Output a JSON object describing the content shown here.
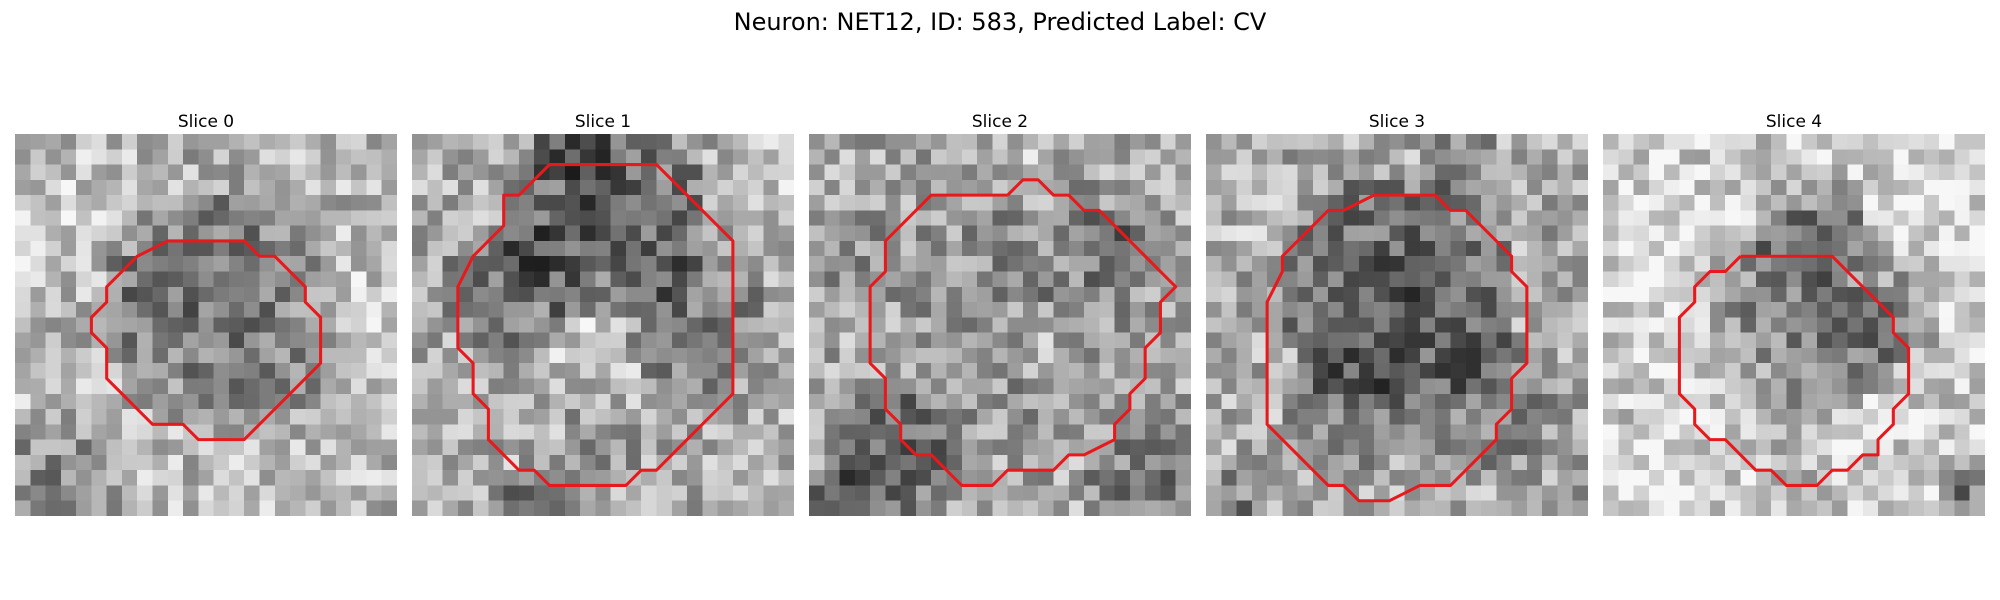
{
  "figure": {
    "title": "Neuron: NET12, ID: 583, Predicted Label: CV"
  },
  "colors": {
    "contour": "#e8191c",
    "background": "#ffffff"
  },
  "panels": [
    {
      "title": "Slice 0",
      "contour": [
        [
          12,
          7
        ],
        [
          15,
          7
        ],
        [
          16,
          8
        ],
        [
          17,
          8
        ],
        [
          18,
          9
        ],
        [
          19,
          10
        ],
        [
          19,
          11
        ],
        [
          20,
          12
        ],
        [
          20,
          13
        ],
        [
          20,
          14
        ],
        [
          20,
          15
        ],
        [
          19,
          16
        ],
        [
          18,
          17
        ],
        [
          17,
          18
        ],
        [
          16,
          19
        ],
        [
          15,
          20
        ],
        [
          12,
          20
        ],
        [
          11,
          19
        ],
        [
          9,
          19
        ],
        [
          8,
          18
        ],
        [
          7,
          17
        ],
        [
          6,
          16
        ],
        [
          6,
          15
        ],
        [
          6,
          14
        ],
        [
          5,
          13
        ],
        [
          5,
          12
        ],
        [
          6,
          11
        ],
        [
          6,
          10
        ],
        [
          7,
          9
        ],
        [
          8,
          8
        ],
        [
          10,
          7
        ],
        [
          12,
          7
        ]
      ],
      "patches": [
        {
          "cx": 13,
          "cy": 11,
          "r": 8,
          "s": -0.28
        },
        {
          "cx": 8,
          "cy": 10,
          "r": 4,
          "s": -0.12
        },
        {
          "cx": 14,
          "cy": 6,
          "r": 3,
          "s": -0.08
        },
        {
          "cx": 2,
          "cy": 23,
          "r": 6,
          "s": -0.22
        },
        {
          "cx": 8,
          "cy": 29,
          "r": 5,
          "s": -0.25
        },
        {
          "cx": 22,
          "cy": 29,
          "r": 5,
          "s": -0.18
        },
        {
          "cx": 12,
          "cy": 2,
          "r": 4,
          "s": -0.05
        },
        {
          "cx": 26,
          "cy": 10,
          "r": 5,
          "s": 0.08
        },
        {
          "cx": 3,
          "cy": 5,
          "r": 5,
          "s": 0.08
        }
      ],
      "base": 0.72,
      "seed": 11
    },
    {
      "title": "Slice 1",
      "contour": [
        [
          9,
          2
        ],
        [
          16,
          2
        ],
        [
          18,
          4
        ],
        [
          20,
          6
        ],
        [
          21,
          7
        ],
        [
          21,
          9
        ],
        [
          21,
          14
        ],
        [
          21,
          17
        ],
        [
          19,
          19
        ],
        [
          17,
          21
        ],
        [
          16,
          22
        ],
        [
          15,
          22
        ],
        [
          14,
          23
        ],
        [
          9,
          23
        ],
        [
          8,
          22
        ],
        [
          7,
          22
        ],
        [
          6,
          21
        ],
        [
          5,
          20
        ],
        [
          5,
          18
        ],
        [
          4,
          17
        ],
        [
          4,
          16
        ],
        [
          4,
          15
        ],
        [
          3,
          14
        ],
        [
          3,
          12
        ],
        [
          3,
          10
        ],
        [
          4,
          8
        ],
        [
          5,
          7
        ],
        [
          6,
          6
        ],
        [
          6,
          4
        ],
        [
          7,
          4
        ],
        [
          8,
          3
        ],
        [
          9,
          2
        ]
      ],
      "patches": [
        {
          "cx": 12,
          "cy": 5,
          "r": 7,
          "s": -0.38
        },
        {
          "cx": 6,
          "cy": 10,
          "r": 5,
          "s": -0.25
        },
        {
          "cx": 18,
          "cy": 12,
          "r": 5,
          "s": -0.25
        },
        {
          "cx": 11,
          "cy": 12,
          "r": 5,
          "s": 0.12
        },
        {
          "cx": 12,
          "cy": 20,
          "r": 3,
          "s": -0.12
        },
        {
          "cx": 7,
          "cy": 24,
          "r": 3,
          "s": -0.4
        },
        {
          "cx": 10,
          "cy": 0,
          "r": 3,
          "s": -0.2
        },
        {
          "cx": 22,
          "cy": 24,
          "r": 4,
          "s": 0.06
        },
        {
          "cx": 24,
          "cy": 2,
          "r": 4,
          "s": 0.12
        }
      ],
      "base": 0.68,
      "seed": 23
    },
    {
      "title": "Slice 2",
      "contour": [
        [
          13,
          4
        ],
        [
          14,
          3
        ],
        [
          15,
          3
        ],
        [
          16,
          4
        ],
        [
          17,
          4
        ],
        [
          18,
          5
        ],
        [
          19,
          5
        ],
        [
          20,
          6
        ],
        [
          21,
          7
        ],
        [
          22,
          8
        ],
        [
          23,
          9
        ],
        [
          24,
          10
        ],
        [
          23,
          11
        ],
        [
          23,
          13
        ],
        [
          22,
          14
        ],
        [
          22,
          16
        ],
        [
          21,
          17
        ],
        [
          21,
          18
        ],
        [
          20,
          19
        ],
        [
          20,
          20
        ],
        [
          18,
          21
        ],
        [
          17,
          21
        ],
        [
          16,
          22
        ],
        [
          15,
          22
        ],
        [
          13,
          22
        ],
        [
          12,
          23
        ],
        [
          10,
          23
        ],
        [
          9,
          22
        ],
        [
          8,
          21
        ],
        [
          7,
          21
        ],
        [
          6,
          20
        ],
        [
          6,
          19
        ],
        [
          5,
          18
        ],
        [
          5,
          16
        ],
        [
          4,
          15
        ],
        [
          4,
          14
        ],
        [
          4,
          12
        ],
        [
          4,
          11
        ],
        [
          4,
          10
        ],
        [
          5,
          9
        ],
        [
          5,
          7
        ],
        [
          6,
          6
        ],
        [
          7,
          5
        ],
        [
          8,
          4
        ],
        [
          9,
          4
        ],
        [
          13,
          4
        ]
      ],
      "patches": [
        {
          "cx": 14,
          "cy": 10,
          "r": 9,
          "s": -0.12
        },
        {
          "cx": 20,
          "cy": 7,
          "r": 3,
          "s": -0.2
        },
        {
          "cx": 5,
          "cy": 20,
          "r": 5,
          "s": -0.3
        },
        {
          "cx": 1,
          "cy": 24,
          "r": 3,
          "s": -0.4
        },
        {
          "cx": 22,
          "cy": 23,
          "r": 5,
          "s": -0.22
        },
        {
          "cx": 15,
          "cy": 13,
          "r": 3,
          "s": 0.12
        },
        {
          "cx": 2,
          "cy": 8,
          "r": 4,
          "s": -0.1
        },
        {
          "cx": 13,
          "cy": 1,
          "r": 4,
          "s": 0.08
        }
      ],
      "base": 0.66,
      "seed": 37
    },
    {
      "title": "Slice 3",
      "contour": [
        [
          11,
          4
        ],
        [
          15,
          4
        ],
        [
          16,
          5
        ],
        [
          17,
          5
        ],
        [
          18,
          6
        ],
        [
          19,
          7
        ],
        [
          20,
          8
        ],
        [
          20,
          9
        ],
        [
          21,
          10
        ],
        [
          21,
          13
        ],
        [
          21,
          15
        ],
        [
          20,
          16
        ],
        [
          20,
          18
        ],
        [
          19,
          19
        ],
        [
          19,
          20
        ],
        [
          18,
          21
        ],
        [
          17,
          22
        ],
        [
          16,
          23
        ],
        [
          14,
          23
        ],
        [
          12,
          24
        ],
        [
          10,
          24
        ],
        [
          9,
          23
        ],
        [
          8,
          23
        ],
        [
          7,
          22
        ],
        [
          6,
          21
        ],
        [
          5,
          20
        ],
        [
          4,
          19
        ],
        [
          4,
          18
        ],
        [
          4,
          16
        ],
        [
          4,
          15
        ],
        [
          4,
          13
        ],
        [
          4,
          11
        ],
        [
          5,
          9
        ],
        [
          5,
          8
        ],
        [
          6,
          7
        ],
        [
          7,
          6
        ],
        [
          8,
          5
        ],
        [
          9,
          5
        ],
        [
          11,
          4
        ]
      ],
      "patches": [
        {
          "cx": 12,
          "cy": 10,
          "r": 8,
          "s": -0.35
        },
        {
          "cx": 9,
          "cy": 17,
          "r": 5,
          "s": -0.2
        },
        {
          "cx": 18,
          "cy": 17,
          "r": 5,
          "s": -0.18
        },
        {
          "cx": 1,
          "cy": 24,
          "r": 3,
          "s": -0.2
        },
        {
          "cx": 23,
          "cy": 24,
          "r": 3,
          "s": -0.05
        },
        {
          "cx": 3,
          "cy": 5,
          "r": 4,
          "s": 0.06
        },
        {
          "cx": 16,
          "cy": 2,
          "r": 3,
          "s": -0.12
        },
        {
          "cx": 13,
          "cy": 25,
          "r": 3,
          "s": 0.08
        }
      ],
      "base": 0.67,
      "seed": 59
    },
    {
      "title": "Slice 4",
      "contour": [
        [
          9,
          8
        ],
        [
          15,
          8
        ],
        [
          16,
          9
        ],
        [
          17,
          10
        ],
        [
          18,
          11
        ],
        [
          19,
          12
        ],
        [
          19,
          13
        ],
        [
          20,
          14
        ],
        [
          20,
          15
        ],
        [
          20,
          16
        ],
        [
          20,
          17
        ],
        [
          19,
          18
        ],
        [
          19,
          19
        ],
        [
          18,
          20
        ],
        [
          18,
          21
        ],
        [
          17,
          21
        ],
        [
          16,
          22
        ],
        [
          15,
          22
        ],
        [
          14,
          23
        ],
        [
          12,
          23
        ],
        [
          11,
          22
        ],
        [
          10,
          22
        ],
        [
          9,
          21
        ],
        [
          8,
          20
        ],
        [
          7,
          20
        ],
        [
          6,
          19
        ],
        [
          6,
          18
        ],
        [
          5,
          17
        ],
        [
          5,
          16
        ],
        [
          5,
          14
        ],
        [
          5,
          13
        ],
        [
          5,
          12
        ],
        [
          6,
          11
        ],
        [
          6,
          10
        ],
        [
          7,
          9
        ],
        [
          8,
          9
        ],
        [
          9,
          8
        ]
      ],
      "patches": [
        {
          "cx": 13,
          "cy": 11,
          "r": 7,
          "s": -0.35
        },
        {
          "cx": 13,
          "cy": 6,
          "r": 4,
          "s": -0.25
        },
        {
          "cx": 18,
          "cy": 13,
          "r": 4,
          "s": -0.15
        },
        {
          "cx": 12,
          "cy": 20,
          "r": 3,
          "s": -0.1
        },
        {
          "cx": 23,
          "cy": 23,
          "r": 2,
          "s": -0.45
        },
        {
          "cx": 3,
          "cy": 7,
          "r": 5,
          "s": 0.1
        },
        {
          "cx": 22,
          "cy": 4,
          "r": 5,
          "s": 0.08
        },
        {
          "cx": 3,
          "cy": 22,
          "r": 4,
          "s": 0.08
        }
      ],
      "base": 0.8,
      "seed": 71
    }
  ]
}
